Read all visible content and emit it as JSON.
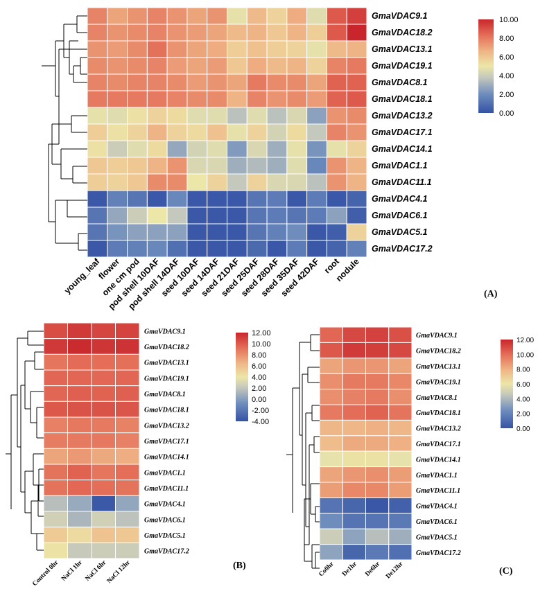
{
  "colors": [
    "#3452a4",
    "#6e8dbd",
    "#c5c8bc",
    "#ece6a8",
    "#efb485",
    "#e36a56",
    "#c8262c"
  ],
  "chart_data": [
    {
      "type": "heatmap",
      "panel": "(A)",
      "rows": [
        "GmaVDAC9.1",
        "GmaVDAC18.2",
        "GmaVDAC13.1",
        "GmaVDAC19.1",
        "GmaVDAC8.1",
        "GmaVDAC18.1",
        "GmaVDAC13.2",
        "GmaVDAC17.1",
        "GmaVDAC14.1",
        "GmaVDAC1.1",
        "GmaVDAC11.1",
        "GmaVDAC4.1",
        "GmaVDAC6.1",
        "GmaVDAC5.1",
        "GmaVDAC17.2"
      ],
      "columns": [
        "young_leaf",
        "flower",
        "one cm pod",
        "pod shell 10DAF",
        "pod shell 14DAF",
        "seed 10DAF",
        "seed 14DAF",
        "seed 21DAF",
        "seed 25DAF",
        "seed 28DAF",
        "seed 35DAF",
        "seed 42DAF",
        "root",
        "nodule"
      ],
      "values": [
        [
          7.8,
          7.0,
          7.4,
          7.8,
          7.4,
          7.0,
          7.4,
          4.8,
          6.4,
          5.6,
          6.8,
          4.6,
          8.8,
          9.4
        ],
        [
          7.8,
          7.4,
          7.6,
          7.8,
          7.4,
          7.2,
          7.0,
          6.4,
          6.6,
          6.0,
          6.6,
          5.8,
          8.8,
          10.0
        ],
        [
          7.4,
          7.2,
          7.6,
          8.2,
          7.4,
          7.0,
          6.8,
          5.8,
          6.2,
          5.8,
          5.6,
          4.8,
          6.4,
          6.6
        ],
        [
          7.6,
          7.4,
          7.6,
          7.8,
          7.2,
          7.0,
          7.2,
          6.0,
          6.8,
          6.4,
          6.6,
          5.6,
          7.8,
          8.0
        ],
        [
          7.8,
          7.6,
          7.8,
          7.8,
          7.6,
          7.2,
          7.4,
          7.0,
          8.0,
          7.6,
          7.6,
          7.0,
          8.6,
          8.6
        ],
        [
          8.0,
          8.0,
          8.0,
          8.0,
          7.8,
          7.6,
          7.6,
          6.6,
          7.8,
          7.4,
          7.6,
          7.2,
          8.6,
          8.8
        ],
        [
          4.8,
          4.6,
          5.2,
          5.6,
          5.4,
          4.6,
          4.6,
          3.6,
          4.6,
          3.6,
          4.4,
          2.6,
          7.4,
          7.6
        ],
        [
          5.8,
          5.2,
          5.6,
          6.6,
          5.6,
          5.4,
          6.2,
          4.8,
          5.6,
          4.2,
          5.4,
          3.8,
          7.8,
          7.4
        ],
        [
          5.2,
          4.0,
          4.6,
          5.4,
          2.8,
          4.2,
          4.6,
          2.4,
          4.4,
          3.0,
          4.8,
          2.2,
          4.8,
          5.6
        ],
        [
          6.0,
          5.8,
          6.0,
          6.6,
          7.4,
          4.4,
          4.4,
          3.0,
          3.4,
          3.0,
          4.6,
          1.8,
          7.4,
          6.6
        ],
        [
          5.8,
          5.6,
          6.0,
          7.6,
          7.6,
          5.0,
          5.6,
          3.8,
          5.6,
          4.4,
          4.4,
          3.6,
          7.4,
          6.6
        ],
        [
          0.2,
          1.6,
          1.2,
          0.2,
          1.8,
          0.2,
          0.2,
          0.2,
          1.2,
          1.4,
          0.2,
          1.4,
          0.2,
          0.6
        ],
        [
          1.2,
          2.8,
          4.0,
          5.0,
          3.8,
          0.2,
          0.2,
          0.2,
          1.2,
          1.4,
          1.2,
          1.4,
          2.6,
          0.4
        ],
        [
          1.2,
          2.2,
          2.6,
          2.6,
          2.6,
          0.2,
          0.2,
          0.2,
          1.2,
          1.6,
          2.0,
          0.2,
          0.4,
          5.6
        ],
        [
          0.2,
          1.4,
          1.6,
          1.8,
          1.0,
          0.2,
          0.2,
          0.2,
          0.8,
          0.2,
          1.4,
          0.2,
          0.6,
          1.6
        ]
      ],
      "colorbar": {
        "min": 0,
        "max": 10,
        "ticks": [
          "10.00",
          "8.00",
          "6.00",
          "4.00",
          "2.00",
          "0.00"
        ]
      }
    },
    {
      "type": "heatmap",
      "panel": "(B)",
      "rows": [
        "GmaVDAC9.1",
        "GmaVDAC18.2",
        "GmaVDAC13.1",
        "GmaVDAC19.1",
        "GmaVDAC8.1",
        "GmaVDAC18.1",
        "GmaVDAC13.2",
        "GmaVDAC17.1",
        "GmaVDAC14.1",
        "GmaVDAC1.1",
        "GmaVDAC11.1",
        "GmaVDAC4.1",
        "GmaVDAC6.1",
        "GmaVDAC5.1",
        "GmaVDAC17.2"
      ],
      "columns": [
        "Control 0hr",
        "NaCl 1hr",
        "NaCl 6hr",
        "NaCl 12hr"
      ],
      "values": [
        [
          10.5,
          11.2,
          10.8,
          10.9
        ],
        [
          11.3,
          11.8,
          11.4,
          11.5
        ],
        [
          9.0,
          9.4,
          9.3,
          9.2
        ],
        [
          9.6,
          9.6,
          9.5,
          9.6
        ],
        [
          9.6,
          9.8,
          9.7,
          9.8
        ],
        [
          10.1,
          10.3,
          10.3,
          10.2
        ],
        [
          8.6,
          8.9,
          8.8,
          8.5
        ],
        [
          8.7,
          8.8,
          8.9,
          8.6
        ],
        [
          7.2,
          7.6,
          7.0,
          6.8
        ],
        [
          9.1,
          9.7,
          9.0,
          9.3
        ],
        [
          9.1,
          9.5,
          9.3,
          9.1
        ],
        [
          1.6,
          0.6,
          -3.6,
          0.4
        ],
        [
          2.6,
          1.2,
          2.6,
          1.8
        ],
        [
          5.4,
          4.6,
          5.8,
          5.6
        ],
        [
          4.2,
          2.2,
          2.4,
          2.4
        ]
      ],
      "colorbar": {
        "min": -4,
        "max": 12,
        "ticks": [
          "12.00",
          "10.00",
          "8.00",
          "6.00",
          "4.00",
          "2.00",
          "0.00",
          "-2.00",
          "-4.00"
        ]
      }
    },
    {
      "type": "heatmap",
      "panel": "(C)",
      "rows": [
        "GmaVDAC9.1",
        "GmaVDAC18.2",
        "GmaVDAC13.1",
        "GmaVDAC19.1",
        "GmaVDAC8.1",
        "GmaVDAC18.1",
        "GmaVDAC13.2",
        "GmaVDAC17.1",
        "GmaVDAC14.1",
        "GmaVDAC1.1",
        "GmaVDAC11.1",
        "GmaVDAC4.1",
        "GmaVDAC6.1",
        "GmaVDAC5.1",
        "GmaVDAC17.2"
      ],
      "columns": [
        "Co0hr",
        "De1hr",
        "De6hr",
        "De12hr"
      ],
      "values": [
        [
          10.2,
          11.0,
          11.2,
          10.8
        ],
        [
          10.6,
          11.4,
          11.3,
          11.0
        ],
        [
          8.4,
          8.8,
          8.8,
          8.4
        ],
        [
          9.0,
          9.6,
          9.6,
          9.2
        ],
        [
          9.0,
          9.4,
          9.6,
          9.0
        ],
        [
          9.6,
          10.0,
          10.3,
          9.8
        ],
        [
          7.8,
          7.8,
          8.0,
          7.8
        ],
        [
          7.6,
          8.2,
          8.2,
          8.0
        ],
        [
          5.8,
          6.2,
          6.2,
          5.8
        ],
        [
          8.4,
          8.8,
          9.0,
          8.6
        ],
        [
          8.6,
          9.2,
          9.2,
          8.6
        ],
        [
          1.4,
          0.8,
          0.2,
          0.6
        ],
        [
          2.4,
          1.4,
          1.4,
          1.6
        ],
        [
          4.8,
          3.2,
          4.2,
          3.6
        ],
        [
          3.2,
          0.8,
          1.6,
          1.2
        ]
      ],
      "colorbar": {
        "min": 0,
        "max": 12,
        "ticks": [
          "12.00",
          "10.00",
          "8.00",
          "6.00",
          "4.00",
          "2.00",
          "0.00"
        ]
      }
    }
  ]
}
